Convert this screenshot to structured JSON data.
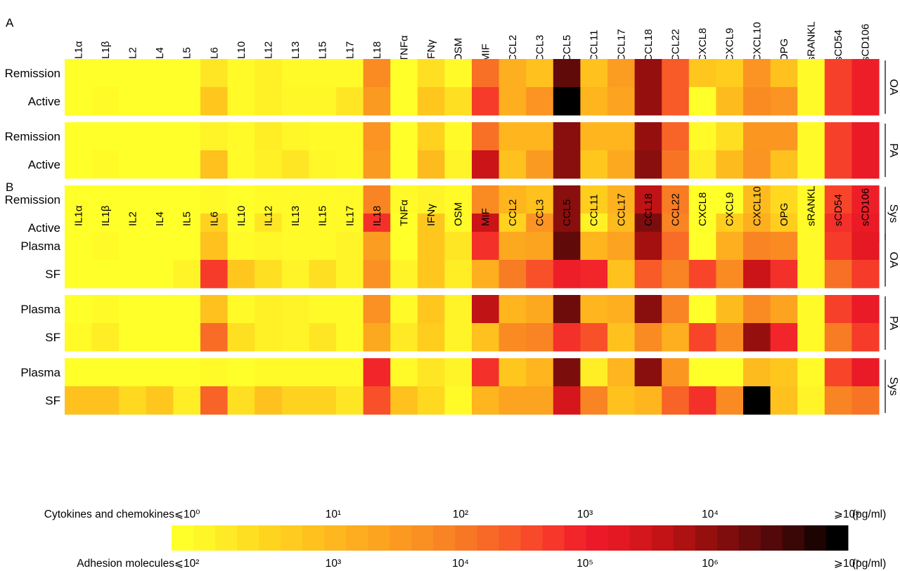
{
  "chart_data": [
    {
      "type": "heatmap",
      "panel": "A",
      "columns": [
        "IL1α",
        "IL1β",
        "IL2",
        "IL4",
        "IL5",
        "IL6",
        "IL10",
        "IL12",
        "IL13",
        "IL15",
        "IL17",
        "IL18",
        "TNFα",
        "IFNγ",
        "OSM",
        "MIF",
        "CCL2",
        "CCL3",
        "CCL5",
        "CCL11",
        "CCL17",
        "CCL18",
        "CCL22",
        "CXCL8",
        "CXCL9",
        "CXCL10",
        "OPG",
        "sRANKL",
        "sCD54",
        "sCD106"
      ],
      "groups": [
        {
          "name": "OA",
          "rows": [
            {
              "label": "Remission",
              "values": [
                0,
                0,
                0,
                0,
                0,
                0.08,
                0.02,
                0.05,
                0.02,
                0.02,
                0.02,
                0.38,
                0,
                0.1,
                0.02,
                0.45,
                0.26,
                0.2,
                0.88,
                0.2,
                0.32,
                0.8,
                0.5,
                0.18,
                0.16,
                0.35,
                0.2,
                0.02,
                0.55,
                0.62
              ]
            },
            {
              "label": "Active",
              "values": [
                0,
                0.02,
                0,
                0,
                0,
                0.18,
                0.02,
                0.05,
                0.03,
                0.03,
                0.08,
                0.33,
                0,
                0.18,
                0.1,
                0.56,
                0.26,
                0.35,
                1.0,
                0.24,
                0.3,
                0.8,
                0.5,
                0,
                0.22,
                0.38,
                0.35,
                0.02,
                0.55,
                0.62
              ]
            }
          ]
        },
        {
          "name": "PA",
          "rows": [
            {
              "label": "Remission",
              "values": [
                0,
                0,
                0,
                0,
                0,
                0.04,
                0.02,
                0.06,
                0.03,
                0.02,
                0.02,
                0.35,
                0,
                0.14,
                0.02,
                0.45,
                0.24,
                0.24,
                0.82,
                0.24,
                0.24,
                0.8,
                0.48,
                0.02,
                0.1,
                0.34,
                0.34,
                0.02,
                0.55,
                0.64
              ]
            },
            {
              "label": "Active",
              "values": [
                0,
                0.02,
                0,
                0,
                0,
                0.2,
                0.02,
                0.05,
                0.08,
                0.03,
                0.02,
                0.33,
                0,
                0.22,
                0.04,
                0.72,
                0.2,
                0.33,
                0.82,
                0.18,
                0.28,
                0.82,
                0.44,
                0.06,
                0.22,
                0.35,
                0.2,
                0.02,
                0.55,
                0.64
              ]
            }
          ]
        },
        {
          "name": "Sys",
          "rows": [
            {
              "label": "Remission",
              "values": [
                0,
                0,
                0,
                0,
                0,
                0.02,
                0,
                0.02,
                0.02,
                0.02,
                0.02,
                0.4,
                0.02,
                0.04,
                0.02,
                0.38,
                0.24,
                0.2,
                0.82,
                0.16,
                0.25,
                0.74,
                0.42,
                0,
                0,
                0.22,
                0.12,
                0.02,
                0.54,
                0.62
              ]
            },
            {
              "label": "Active",
              "values": [
                0,
                0,
                0,
                0,
                0,
                0.14,
                0,
                0.08,
                0.02,
                0.02,
                0.02,
                0.58,
                0,
                0.18,
                0.02,
                0.72,
                0.14,
                0.35,
                0.82,
                0.05,
                0.22,
                0.84,
                0.4,
                0,
                0.16,
                0.26,
                0.16,
                0.02,
                0.58,
                0.64
              ]
            }
          ]
        }
      ]
    },
    {
      "type": "heatmap",
      "panel": "B",
      "columns": [
        "IL1α",
        "IL1β",
        "IL2",
        "IL4",
        "IL5",
        "IL6",
        "IL10",
        "IL12",
        "IL13",
        "IL15",
        "IL17",
        "IL18",
        "TNFα",
        "IFNγ",
        "OSM",
        "MIF",
        "CCL2",
        "CCL3",
        "CCL5",
        "CCL11",
        "CCL17",
        "CCL18",
        "CCL22",
        "CXCL8",
        "CXCL9",
        "CXCL10",
        "OPG",
        "sRANKL",
        "sCD54",
        "sCD106"
      ],
      "groups": [
        {
          "name": "OA",
          "rows": [
            {
              "label": "Plasma",
              "values": [
                0,
                0.02,
                0,
                0,
                0,
                0.2,
                0.02,
                0.03,
                0.02,
                0.02,
                0.04,
                0.32,
                0,
                0.18,
                0.08,
                0.58,
                0.28,
                0.3,
                0.88,
                0.24,
                0.3,
                0.78,
                0.46,
                0,
                0.26,
                0.4,
                0.38,
                0.02,
                0.56,
                0.66
              ]
            },
            {
              "label": "SF",
              "values": [
                0,
                0,
                0,
                0,
                0.04,
                0.56,
                0.18,
                0.1,
                0.04,
                0.1,
                0.04,
                0.36,
                0.04,
                0.18,
                0.06,
                0.26,
                0.42,
                0.52,
                0.62,
                0.6,
                0.2,
                0.5,
                0.4,
                0.54,
                0.38,
                0.72,
                0.58,
                0.02,
                0.45,
                0.56
              ]
            }
          ]
        },
        {
          "name": "PA",
          "rows": [
            {
              "label": "Plasma",
              "values": [
                0,
                0.02,
                0,
                0,
                0,
                0.2,
                0.02,
                0.05,
                0.04,
                0.02,
                0.02,
                0.36,
                0.02,
                0.18,
                0.04,
                0.74,
                0.24,
                0.28,
                0.86,
                0.24,
                0.26,
                0.82,
                0.4,
                0,
                0.22,
                0.38,
                0.3,
                0.02,
                0.55,
                0.64
              ]
            },
            {
              "label": "SF",
              "values": [
                0.02,
                0.06,
                0,
                0,
                0,
                0.46,
                0.1,
                0.05,
                0.04,
                0.08,
                0.02,
                0.28,
                0.07,
                0.16,
                0.04,
                0.2,
                0.38,
                0.4,
                0.58,
                0.52,
                0.2,
                0.38,
                0.26,
                0.54,
                0.38,
                0.8,
                0.6,
                0.02,
                0.42,
                0.56
              ]
            }
          ]
        },
        {
          "name": "Sys",
          "rows": [
            {
              "label": "Plasma",
              "values": [
                0,
                0,
                0,
                0,
                0,
                0.02,
                0,
                0.02,
                0.02,
                0.02,
                0.02,
                0.6,
                0.02,
                0.08,
                0.04,
                0.58,
                0.18,
                0.24,
                0.84,
                0.06,
                0.24,
                0.82,
                0.34,
                0,
                0,
                0.22,
                0.18,
                0.02,
                0.54,
                0.64
              ]
            },
            {
              "label": "SF",
              "values": [
                0.2,
                0.2,
                0.12,
                0.18,
                0.06,
                0.48,
                0.1,
                0.2,
                0.14,
                0.14,
                0.08,
                0.52,
                0.2,
                0.12,
                0.02,
                0.24,
                0.3,
                0.3,
                0.7,
                0.4,
                0.2,
                0.24,
                0.48,
                0.58,
                0.38,
                1.0,
                0.2,
                0.04,
                0.4,
                0.44
              ]
            }
          ]
        }
      ]
    },
    {
      "type": "colorbar",
      "stops": [
        "#FFFF2A",
        "#FFF627",
        "#FFEB25",
        "#FFDF22",
        "#FFD41F",
        "#FFCB1E",
        "#FEC11E",
        "#FEB71E",
        "#FDAD1F",
        "#FCA320",
        "#FB9921",
        "#FA8F22",
        "#F98423",
        "#F87725",
        "#F86927",
        "#F85A28",
        "#F8492A",
        "#F6372A",
        "#F2252A",
        "#EC1A28",
        "#E31822",
        "#D5161C",
        "#C31316",
        "#AD1111",
        "#960F0F",
        "#800D0D",
        "#6A0B0B",
        "#530909",
        "#3B0606",
        "#1E0303",
        "#000000"
      ],
      "scales": [
        {
          "name": "Cytokines and chemokines",
          "labels": [
            "⩽10⁰",
            "10¹",
            "10²",
            "10³",
            "10⁴",
            "⩾10⁵"
          ],
          "unit": "(pg/ml)"
        },
        {
          "name": "Adhesion molecules",
          "labels": [
            "⩽10²",
            "10³",
            "10⁴",
            "10⁵",
            "10⁶",
            "⩾10⁷"
          ],
          "unit": "(pg/ml)"
        }
      ]
    }
  ]
}
